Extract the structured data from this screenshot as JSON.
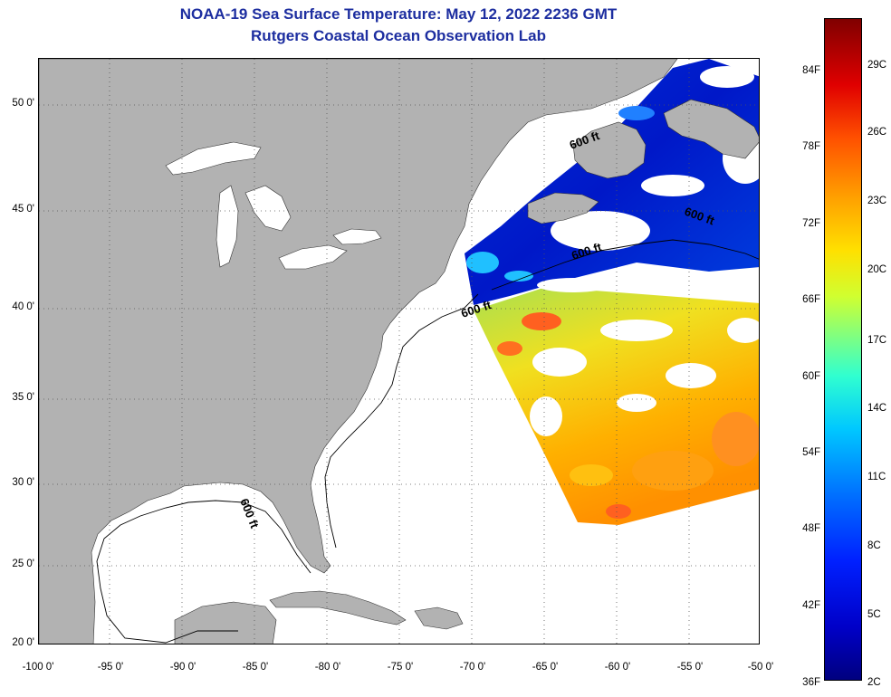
{
  "title": "NOAA-19 Sea Surface Temperature:  May 12, 2022 2236 GMT",
  "subtitle": "Rutgers Coastal Ocean Observation Lab",
  "lat_labels": [
    "50 0'",
    "45 0'",
    "40 0'",
    "35 0'",
    "30 0'",
    "25 0'",
    "20 0'"
  ],
  "lon_labels": [
    "-100 0'",
    "-95 0'",
    "-90 0'",
    "-85 0'",
    "-80 0'",
    "-75 0'",
    "-70 0'",
    "-65 0'",
    "-60 0'",
    "-55 0'",
    "-50 0'"
  ],
  "contour_labels": [
    "600 ft",
    "600 ft",
    "600 ft",
    "600 ft",
    "600 ft"
  ],
  "colorbar": {
    "fahrenheit": [
      "84F",
      "78F",
      "72F",
      "66F",
      "60F",
      "54F",
      "48F",
      "42F",
      "36F"
    ],
    "celsius": [
      "29C",
      "26C",
      "23C",
      "20C",
      "17C",
      "14C",
      "11C",
      "8C",
      "5C",
      "2C"
    ]
  },
  "colors": {
    "title": "#1d2ea0",
    "land": "#b2b2b2",
    "water_nodata": "#ffffff"
  }
}
